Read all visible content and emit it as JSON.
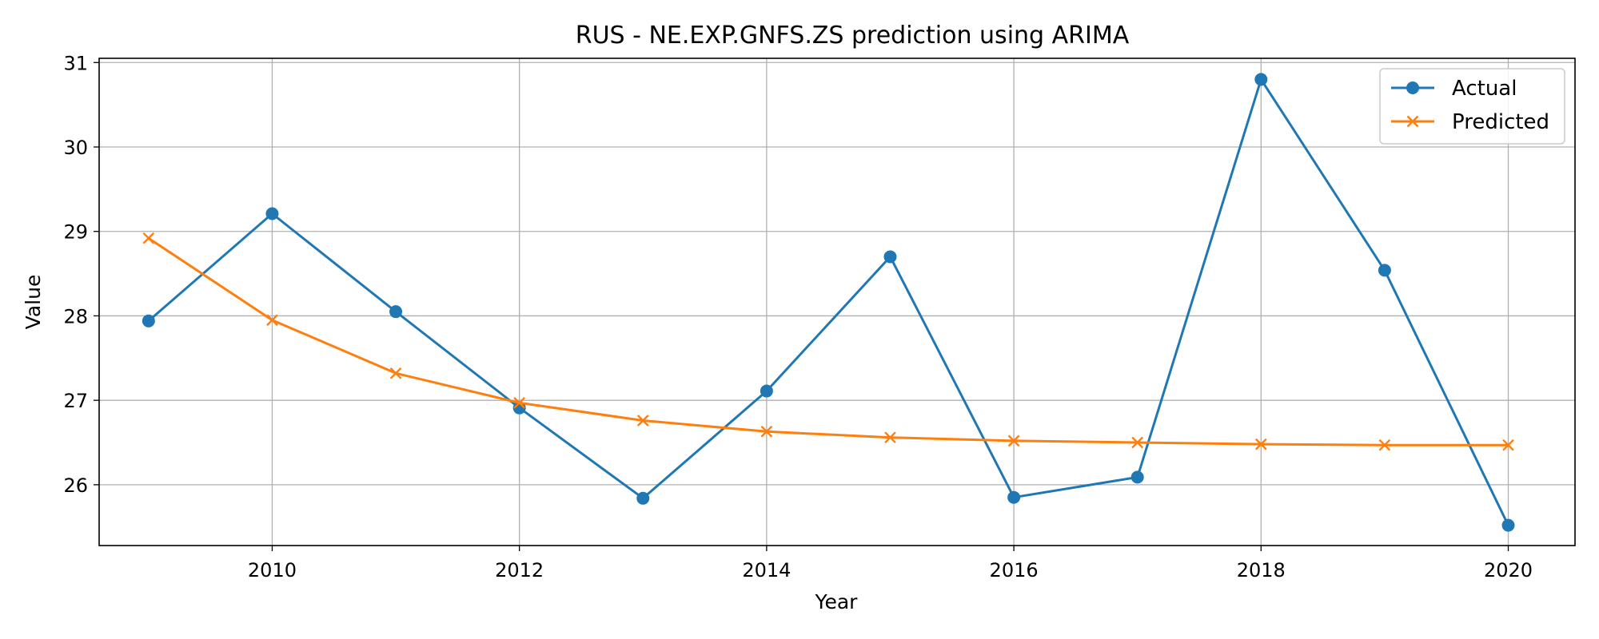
{
  "chart_data": {
    "type": "line",
    "title": "RUS - NE.EXP.GNFS.ZS prediction using ARIMA",
    "xlabel": "Year",
    "ylabel": "Value",
    "xlim": [
      2008.6,
      2020.54
    ],
    "ylim": [
      25.28,
      31.05
    ],
    "xticks": [
      2010,
      2012,
      2014,
      2016,
      2018,
      2020
    ],
    "yticks": [
      26,
      27,
      28,
      29,
      30,
      31
    ],
    "grid": true,
    "legend_position": "top-right",
    "x": [
      2009,
      2010,
      2011,
      2012,
      2013,
      2014,
      2015,
      2016,
      2017,
      2018,
      2019,
      2020
    ],
    "series": [
      {
        "name": "Actual",
        "color": "#1f77b4",
        "marker": "circle",
        "values": [
          27.94,
          29.21,
          28.05,
          26.91,
          25.84,
          27.11,
          28.7,
          25.85,
          26.09,
          30.8,
          28.54,
          25.52
        ]
      },
      {
        "name": "Predicted",
        "color": "#ff7f0e",
        "marker": "x",
        "values": [
          28.92,
          27.95,
          27.32,
          26.97,
          26.76,
          26.63,
          26.56,
          26.52,
          26.5,
          26.48,
          26.47,
          26.47
        ]
      }
    ]
  }
}
